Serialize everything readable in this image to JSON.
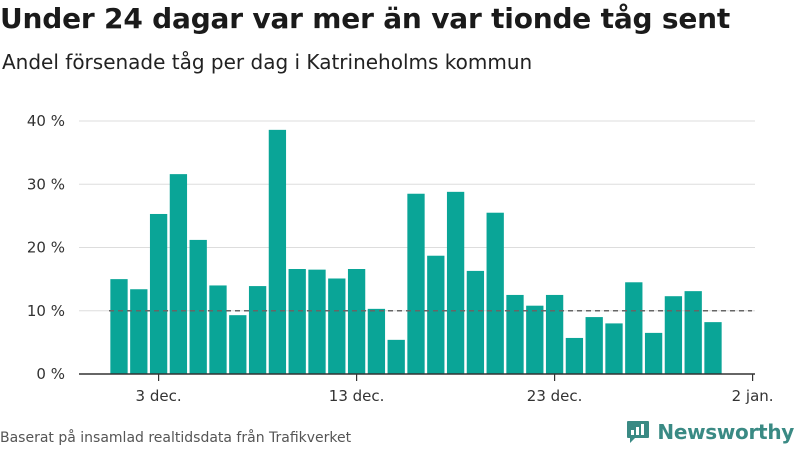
{
  "title": "Under 24 dagar var mer än var tionde tåg sent",
  "subtitle": "Andel försenade tåg per dag i Katrineholms kommun",
  "source": "Baserat på insamlad realtidsdata från Trafikverket",
  "brand": "Newsworthy",
  "colors": {
    "bar": "#0aa597",
    "reference": "#666666",
    "grid": "#dddddd",
    "axis": "#333333",
    "brand": "#3a8a84"
  },
  "chart_data": {
    "type": "bar",
    "x_unit": "day",
    "x": [
      "2018-12-01",
      "2018-12-02",
      "2018-12-03",
      "2018-12-04",
      "2018-12-05",
      "2018-12-06",
      "2018-12-07",
      "2018-12-08",
      "2018-12-09",
      "2018-12-10",
      "2018-12-11",
      "2018-12-12",
      "2018-12-13",
      "2018-12-14",
      "2018-12-15",
      "2018-12-16",
      "2018-12-17",
      "2018-12-18",
      "2018-12-19",
      "2018-12-20",
      "2018-12-21",
      "2018-12-22",
      "2018-12-23",
      "2018-12-24",
      "2018-12-25",
      "2018-12-26",
      "2018-12-27",
      "2018-12-28",
      "2018-12-29",
      "2018-12-30",
      "2018-12-31"
    ],
    "values": [
      15,
      13.4,
      25.3,
      31.6,
      21.2,
      14,
      9.3,
      13.9,
      38.6,
      16.6,
      16.5,
      15.1,
      16.6,
      10.3,
      5.4,
      28.5,
      18.7,
      28.8,
      16.3,
      25.5,
      12.5,
      10.8,
      12.5,
      5.7,
      9,
      8,
      14.5,
      6.5,
      12.3,
      13.1,
      8.2
    ],
    "ylim": [
      0,
      40
    ],
    "yticks": [
      0,
      10,
      20,
      30,
      40
    ],
    "ytick_labels": [
      "0 %",
      "10 %",
      "20 %",
      "30 %",
      "40 %"
    ],
    "xticks": [
      "3 dec.",
      "13 dec.",
      "23 dec.",
      "2 jan."
    ],
    "xtick_dates": [
      "2018-12-03",
      "2018-12-13",
      "2018-12-23",
      "2019-01-02"
    ],
    "reference_line": {
      "value": 10,
      "style": "dashed"
    },
    "grid": true,
    "legend": false
  }
}
